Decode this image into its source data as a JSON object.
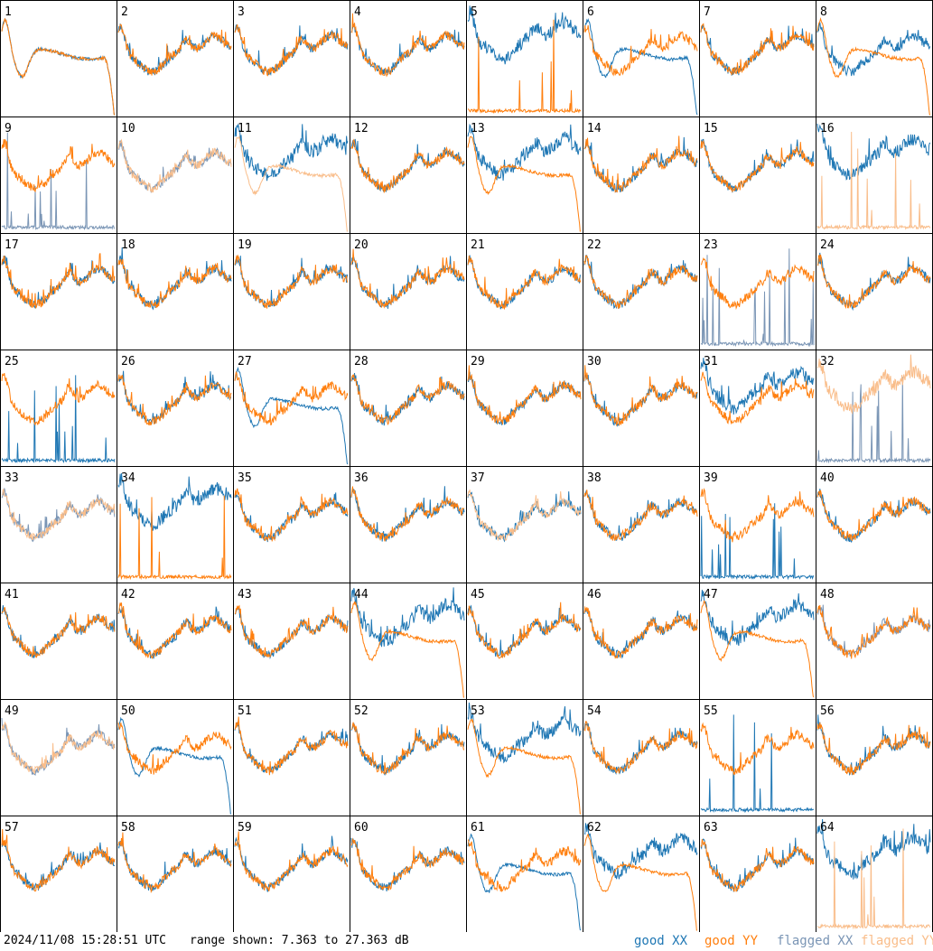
{
  "footer": {
    "timestamp": "2024/11/08 15:28:51 UTC",
    "range_label": "range shown: 7.363 to 27.363 dB"
  },
  "legend": [
    {
      "label": "good XX",
      "color": "#1f77b4"
    },
    {
      "label": "good YY",
      "color": "#ff7f0e"
    },
    {
      "label": "flagged XX",
      "color": "#7a95b5"
    },
    {
      "label": "flagged YY",
      "color": "#f9bd8a"
    }
  ],
  "chart_data": {
    "type": "line",
    "panel_count": 64,
    "y_range_dB": [
      7.363,
      27.363
    ],
    "panels": [
      {
        "label": "1",
        "xx": "good",
        "yy": "good",
        "xx_shape": "rolloff",
        "yy_shape": "rolloff"
      },
      {
        "label": "2",
        "xx": "good",
        "yy": "good",
        "xx_shape": "normal",
        "yy_shape": "normal"
      },
      {
        "label": "3",
        "xx": "good",
        "yy": "good",
        "xx_shape": "normal",
        "yy_shape": "normal"
      },
      {
        "label": "4",
        "xx": "good",
        "yy": "good",
        "xx_shape": "normal",
        "yy_shape": "normal"
      },
      {
        "label": "5",
        "xx": "good",
        "yy": "good",
        "xx_shape": "high",
        "yy_shape": "dead"
      },
      {
        "label": "6",
        "xx": "good",
        "yy": "good",
        "xx_shape": "rolloff",
        "yy_shape": "normal"
      },
      {
        "label": "7",
        "xx": "good",
        "yy": "good",
        "xx_shape": "normal",
        "yy_shape": "normal"
      },
      {
        "label": "8",
        "xx": "good",
        "yy": "good",
        "xx_shape": "normal",
        "yy_shape": "rolloff"
      },
      {
        "label": "9",
        "xx": "flagged",
        "yy": "good",
        "xx_shape": "dead",
        "yy_shape": "normal"
      },
      {
        "label": "10",
        "xx": "flagged",
        "yy": "flagged",
        "xx_shape": "normal",
        "yy_shape": "normal"
      },
      {
        "label": "11",
        "xx": "good",
        "yy": "flagged",
        "xx_shape": "high",
        "yy_shape": "rolloff"
      },
      {
        "label": "12",
        "xx": "good",
        "yy": "good",
        "xx_shape": "normal",
        "yy_shape": "normal"
      },
      {
        "label": "13",
        "xx": "good",
        "yy": "good",
        "xx_shape": "high",
        "yy_shape": "rolloff"
      },
      {
        "label": "14",
        "xx": "good",
        "yy": "good",
        "xx_shape": "normal",
        "yy_shape": "normal"
      },
      {
        "label": "15",
        "xx": "good",
        "yy": "good",
        "xx_shape": "normal",
        "yy_shape": "normal"
      },
      {
        "label": "16",
        "xx": "good",
        "yy": "flagged",
        "xx_shape": "high",
        "yy_shape": "dead"
      },
      {
        "label": "17",
        "xx": "good",
        "yy": "good",
        "xx_shape": "normal",
        "yy_shape": "normal"
      },
      {
        "label": "18",
        "xx": "good",
        "yy": "good",
        "xx_shape": "normal",
        "yy_shape": "normal"
      },
      {
        "label": "19",
        "xx": "good",
        "yy": "good",
        "xx_shape": "normal",
        "yy_shape": "normal"
      },
      {
        "label": "20",
        "xx": "good",
        "yy": "good",
        "xx_shape": "normal",
        "yy_shape": "normal"
      },
      {
        "label": "21",
        "xx": "good",
        "yy": "good",
        "xx_shape": "normal",
        "yy_shape": "normal"
      },
      {
        "label": "22",
        "xx": "good",
        "yy": "good",
        "xx_shape": "normal",
        "yy_shape": "normal"
      },
      {
        "label": "23",
        "xx": "flagged",
        "yy": "good",
        "xx_shape": "dead",
        "yy_shape": "normal"
      },
      {
        "label": "24",
        "xx": "good",
        "yy": "good",
        "xx_shape": "normal",
        "yy_shape": "normal"
      },
      {
        "label": "25",
        "xx": "good",
        "yy": "good",
        "xx_shape": "dead",
        "yy_shape": "normal"
      },
      {
        "label": "26",
        "xx": "good",
        "yy": "good",
        "xx_shape": "normal",
        "yy_shape": "normal"
      },
      {
        "label": "27",
        "xx": "good",
        "yy": "good",
        "xx_shape": "rolloff",
        "yy_shape": "normal"
      },
      {
        "label": "28",
        "xx": "good",
        "yy": "good",
        "xx_shape": "normal",
        "yy_shape": "normal"
      },
      {
        "label": "29",
        "xx": "good",
        "yy": "good",
        "xx_shape": "normal",
        "yy_shape": "normal"
      },
      {
        "label": "30",
        "xx": "good",
        "yy": "good",
        "xx_shape": "normal",
        "yy_shape": "normal"
      },
      {
        "label": "31",
        "xx": "good",
        "yy": "good",
        "xx_shape": "high",
        "yy_shape": "normal"
      },
      {
        "label": "32",
        "xx": "flagged",
        "yy": "flagged",
        "xx_shape": "dead",
        "yy_shape": "high"
      },
      {
        "label": "33",
        "xx": "flagged",
        "yy": "flagged",
        "xx_shape": "normal",
        "yy_shape": "normal"
      },
      {
        "label": "34",
        "xx": "good",
        "yy": "good",
        "xx_shape": "high",
        "yy_shape": "dead"
      },
      {
        "label": "35",
        "xx": "good",
        "yy": "good",
        "xx_shape": "normal",
        "yy_shape": "normal"
      },
      {
        "label": "36",
        "xx": "good",
        "yy": "good",
        "xx_shape": "normal",
        "yy_shape": "normal"
      },
      {
        "label": "37",
        "xx": "good",
        "yy": "flagged",
        "xx_shape": "normal",
        "yy_shape": "normal"
      },
      {
        "label": "38",
        "xx": "good",
        "yy": "good",
        "xx_shape": "normal",
        "yy_shape": "normal"
      },
      {
        "label": "39",
        "xx": "good",
        "yy": "good",
        "xx_shape": "dead",
        "yy_shape": "normal"
      },
      {
        "label": "40",
        "xx": "good",
        "yy": "good",
        "xx_shape": "normal",
        "yy_shape": "normal"
      },
      {
        "label": "41",
        "xx": "good",
        "yy": "good",
        "xx_shape": "normal",
        "yy_shape": "normal"
      },
      {
        "label": "42",
        "xx": "good",
        "yy": "good",
        "xx_shape": "normal",
        "yy_shape": "normal"
      },
      {
        "label": "43",
        "xx": "good",
        "yy": "good",
        "xx_shape": "normal",
        "yy_shape": "normal"
      },
      {
        "label": "44",
        "xx": "good",
        "yy": "good",
        "xx_shape": "high",
        "yy_shape": "rolloff"
      },
      {
        "label": "45",
        "xx": "good",
        "yy": "good",
        "xx_shape": "normal",
        "yy_shape": "normal"
      },
      {
        "label": "46",
        "xx": "good",
        "yy": "good",
        "xx_shape": "normal",
        "yy_shape": "normal"
      },
      {
        "label": "47",
        "xx": "good",
        "yy": "good",
        "xx_shape": "high",
        "yy_shape": "rolloff"
      },
      {
        "label": "48",
        "xx": "flagged",
        "yy": "good",
        "xx_shape": "normal",
        "yy_shape": "normal"
      },
      {
        "label": "49",
        "xx": "flagged",
        "yy": "flagged",
        "xx_shape": "normal",
        "yy_shape": "normal"
      },
      {
        "label": "50",
        "xx": "good",
        "yy": "good",
        "xx_shape": "rolloff",
        "yy_shape": "normal"
      },
      {
        "label": "51",
        "xx": "good",
        "yy": "good",
        "xx_shape": "normal",
        "yy_shape": "normal"
      },
      {
        "label": "52",
        "xx": "good",
        "yy": "good",
        "xx_shape": "normal",
        "yy_shape": "normal"
      },
      {
        "label": "53",
        "xx": "good",
        "yy": "good",
        "xx_shape": "high",
        "yy_shape": "rolloff"
      },
      {
        "label": "54",
        "xx": "good",
        "yy": "good",
        "xx_shape": "normal",
        "yy_shape": "normal"
      },
      {
        "label": "55",
        "xx": "good",
        "yy": "good",
        "xx_shape": "dead",
        "yy_shape": "normal"
      },
      {
        "label": "56",
        "xx": "good",
        "yy": "good",
        "xx_shape": "normal",
        "yy_shape": "normal"
      },
      {
        "label": "57",
        "xx": "good",
        "yy": "good",
        "xx_shape": "normal",
        "yy_shape": "normal"
      },
      {
        "label": "58",
        "xx": "good",
        "yy": "good",
        "xx_shape": "normal",
        "yy_shape": "normal"
      },
      {
        "label": "59",
        "xx": "good",
        "yy": "good",
        "xx_shape": "normal",
        "yy_shape": "normal"
      },
      {
        "label": "60",
        "xx": "good",
        "yy": "good",
        "xx_shape": "normal",
        "yy_shape": "normal"
      },
      {
        "label": "61",
        "xx": "good",
        "yy": "good",
        "xx_shape": "rolloff",
        "yy_shape": "normal"
      },
      {
        "label": "62",
        "xx": "good",
        "yy": "good",
        "xx_shape": "high",
        "yy_shape": "rolloff"
      },
      {
        "label": "63",
        "xx": "good",
        "yy": "good",
        "xx_shape": "normal",
        "yy_shape": "normal"
      },
      {
        "label": "64",
        "xx": "good",
        "yy": "flagged",
        "xx_shape": "high",
        "yy_shape": "dead"
      }
    ]
  }
}
